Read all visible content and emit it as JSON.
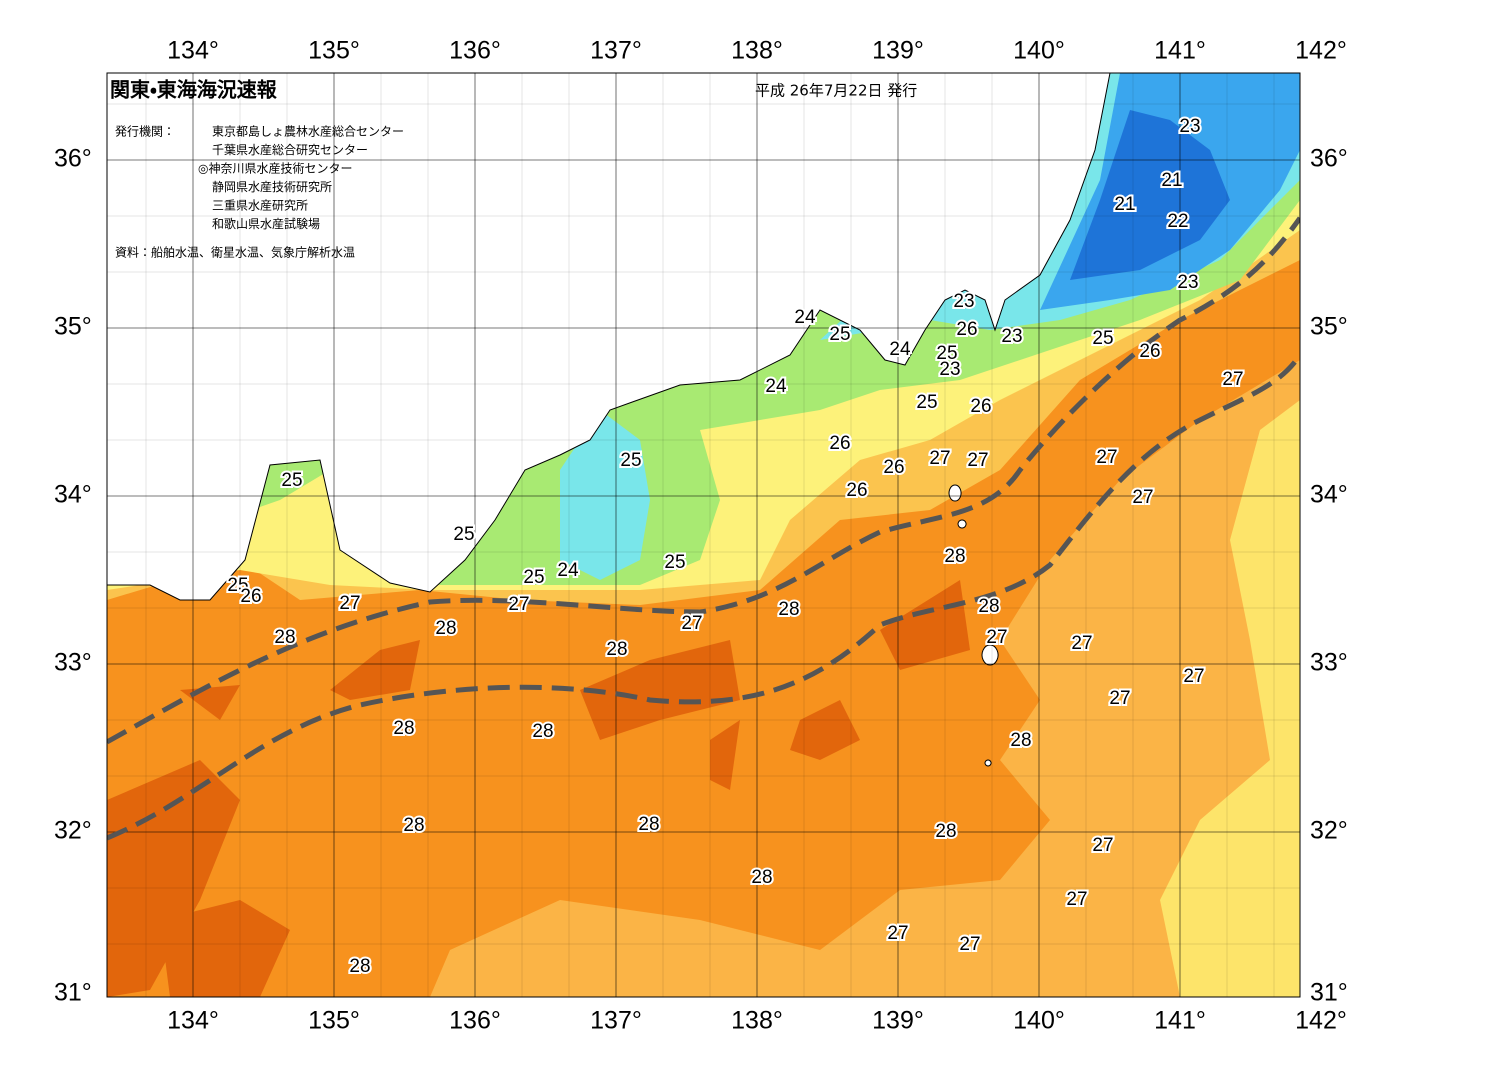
{
  "header": {
    "title": "関東・東海海況速報",
    "date": "平成 26年7月22日 発行"
  },
  "issuers": {
    "label": "発行機関：",
    "list": [
      "東京都島しょ農林水産総合センター",
      "千葉県水産総合研究センター",
      "◎神奈川県水産技術センター",
      "静岡県水産技術研究所",
      "三重県水産研究所",
      "和歌山県水産試験場"
    ]
  },
  "source": "資料：船舶水温、衛星水温、気象庁解析水温",
  "longitudes": [
    "134°",
    "135°",
    "136°",
    "137°",
    "138°",
    "139°",
    "140°",
    "141°",
    "142°"
  ],
  "latitudes": [
    "36°",
    "35°",
    "34°",
    "33°",
    "32°",
    "31°"
  ],
  "temperature_labels": [
    "23",
    "21",
    "21",
    "22",
    "23",
    "24",
    "25",
    "23",
    "26",
    "23",
    "24",
    "25",
    "23",
    "25",
    "26",
    "24",
    "27",
    "25",
    "26",
    "26",
    "25",
    "26",
    "27",
    "27",
    "27",
    "26",
    "25",
    "27",
    "25",
    "28",
    "24",
    "25",
    "25",
    "25",
    "26",
    "27",
    "27",
    "28",
    "28",
    "28",
    "27",
    "28",
    "27",
    "27",
    "28",
    "27",
    "27",
    "28",
    "28",
    "28",
    "28",
    "28",
    "28",
    "27",
    "28",
    "27",
    "27",
    "27",
    "28"
  ]
}
